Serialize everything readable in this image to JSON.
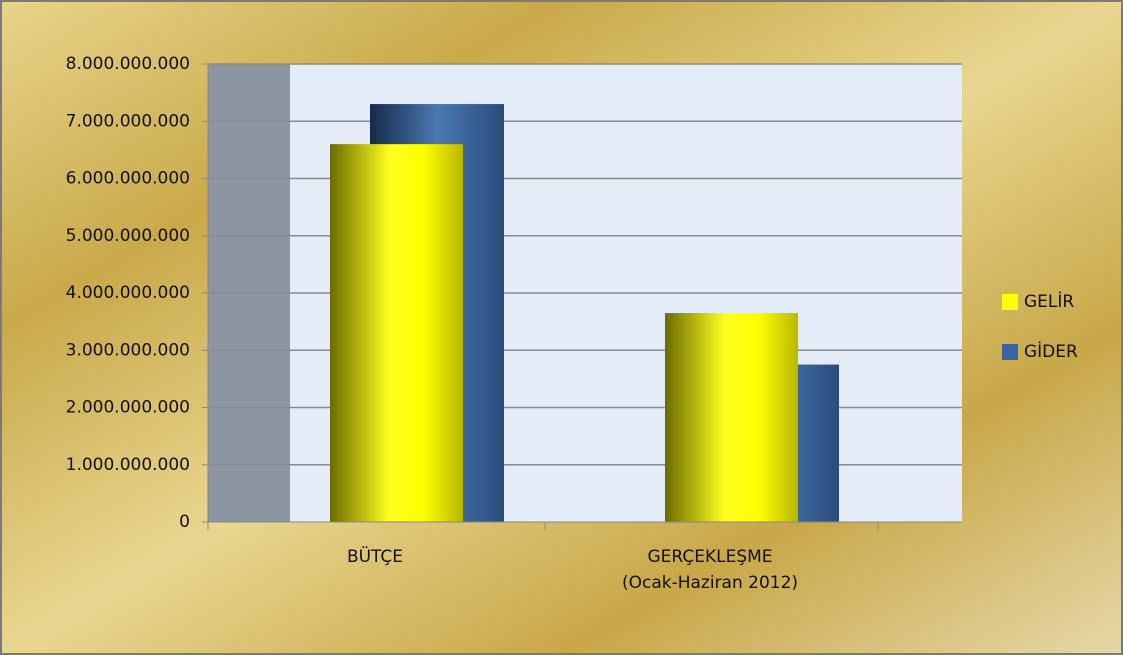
{
  "chart_data": {
    "type": "bar",
    "categories": [
      "BÜTÇE",
      "GERÇEKLEŞME\n(Ocak-Haziran 2012)"
    ],
    "series": [
      {
        "name": "GELİR",
        "color": "#ffff00",
        "values": [
          6600000000,
          3650000000
        ]
      },
      {
        "name": "GİDER",
        "color": "#3a64a0",
        "values": [
          7300000000,
          2750000000
        ]
      }
    ],
    "ylim": [
      0,
      8000000000
    ],
    "yticks": [
      0,
      {
        "value": 1000000000,
        "label": "1.000.000.000"
      },
      {
        "value": 2000000000,
        "label": "2.000.000.000"
      },
      {
        "value": 3000000000,
        "label": "3.000.000.000"
      },
      {
        "value": 4000000000,
        "label": "4.000.000.000"
      },
      {
        "value": 5000000000,
        "label": "5.000.000.000"
      },
      {
        "value": 6000000000,
        "label": "6.000.000.000"
      },
      {
        "value": 7000000000,
        "label": "7.000.000.000"
      },
      {
        "value": 8000000000,
        "label": "8.000.000.000"
      }
    ],
    "grid": true,
    "legend": "right"
  }
}
